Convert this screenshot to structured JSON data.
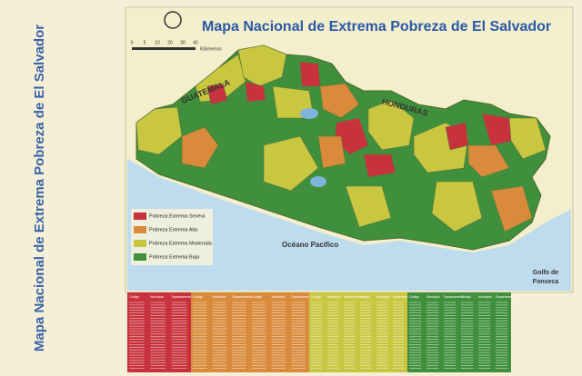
{
  "side_title": "Mapa Nacional de Extrema Pobreza de El Salvador",
  "header": {
    "title": "Mapa Nacional de Extrema Pobreza de El Salvador"
  },
  "scale": {
    "ticks": [
      "0",
      "5",
      "10",
      "20",
      "30",
      "40"
    ],
    "unit": "Kilómetros"
  },
  "labels": {
    "guatemala": "GUATEMALA",
    "honduras": "HONDURAS",
    "ocean": "Océano Pacífico",
    "gulf": [
      "Golfo de",
      "Fonseca"
    ]
  },
  "legend": [
    {
      "label": "Pobreza Extrema Severa",
      "color": "#c8323c"
    },
    {
      "label": "Pobreza Extrema Alta",
      "color": "#d98a3a"
    },
    {
      "label": "Pobreza Extrema Moderada",
      "color": "#c9c640"
    },
    {
      "label": "Pobreza Extrema Baja",
      "color": "#3f8f3c"
    }
  ],
  "tables": [
    {
      "headers": [
        "Código",
        "Municipio",
        "Departamento"
      ]
    },
    {
      "headers": [
        "Código",
        "Municipio",
        "Departamento",
        "Código",
        "Municipio",
        "Departamento"
      ]
    },
    {
      "headers": [
        "Código",
        "Municipio",
        "Departamento",
        "Código",
        "Municipio",
        "Departamento"
      ]
    },
    {
      "headers": [
        "Código",
        "Municipio",
        "Departamento",
        "Código",
        "Municipio",
        "Departamento"
      ]
    }
  ]
}
